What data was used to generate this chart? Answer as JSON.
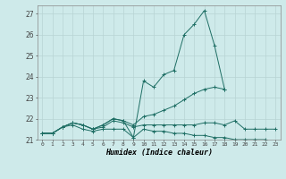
{
  "xlabel": "Humidex (Indice chaleur)",
  "bg_color": "#ceeaea",
  "grid_color": "#b8d4d4",
  "line_color": "#1e6e64",
  "xlim": [
    -0.5,
    23.5
  ],
  "ylim": [
    21.0,
    27.4
  ],
  "yticks": [
    21,
    22,
    23,
    24,
    25,
    26,
    27
  ],
  "xticks": [
    0,
    1,
    2,
    3,
    4,
    5,
    6,
    7,
    8,
    9,
    10,
    11,
    12,
    13,
    14,
    15,
    16,
    17,
    18,
    19,
    20,
    21,
    22,
    23
  ],
  "series": [
    {
      "x": [
        0,
        1,
        2,
        3,
        4,
        5,
        6,
        7,
        8,
        9,
        10,
        11,
        12,
        13,
        14,
        15,
        16,
        17,
        18,
        19,
        20,
        21,
        22,
        23
      ],
      "y": [
        21.3,
        21.3,
        21.6,
        21.7,
        21.5,
        21.4,
        21.5,
        21.5,
        21.5,
        21.1,
        21.5,
        21.4,
        21.4,
        21.3,
        21.3,
        21.2,
        21.2,
        21.1,
        21.1,
        21.0,
        21.0,
        21.0,
        21.0,
        20.85
      ]
    },
    {
      "x": [
        0,
        1,
        2,
        3,
        4,
        5,
        6,
        7,
        8,
        9,
        10,
        11,
        12,
        13,
        14,
        15,
        16,
        17,
        18,
        19,
        20,
        21,
        22,
        23
      ],
      "y": [
        21.3,
        21.3,
        21.6,
        21.8,
        21.7,
        21.5,
        21.6,
        21.9,
        21.8,
        21.6,
        21.7,
        21.7,
        21.7,
        21.7,
        21.7,
        21.7,
        21.8,
        21.8,
        21.7,
        21.9,
        21.5,
        21.5,
        21.5,
        21.5
      ]
    },
    {
      "x": [
        0,
        1,
        2,
        3,
        4,
        5,
        6,
        7,
        8,
        9,
        10,
        11,
        12,
        13,
        14,
        15,
        16,
        17,
        18,
        19,
        20,
        21,
        22,
        23
      ],
      "y": [
        21.3,
        21.3,
        21.6,
        21.8,
        21.7,
        21.5,
        21.7,
        22.0,
        21.9,
        21.7,
        22.1,
        22.2,
        22.4,
        22.6,
        22.9,
        23.2,
        23.4,
        23.5,
        23.4,
        null,
        null,
        null,
        null,
        null
      ]
    },
    {
      "x": [
        0,
        1,
        2,
        3,
        4,
        5,
        6,
        7,
        8,
        9,
        10,
        11,
        12,
        13,
        14,
        15,
        16,
        17,
        18,
        19,
        20,
        21,
        22,
        23
      ],
      "y": [
        21.3,
        21.3,
        21.6,
        21.8,
        21.7,
        21.5,
        21.7,
        22.0,
        21.9,
        21.1,
        23.8,
        23.5,
        24.1,
        24.3,
        26.0,
        26.5,
        27.15,
        25.5,
        23.4,
        null,
        null,
        null,
        null,
        null
      ]
    }
  ]
}
